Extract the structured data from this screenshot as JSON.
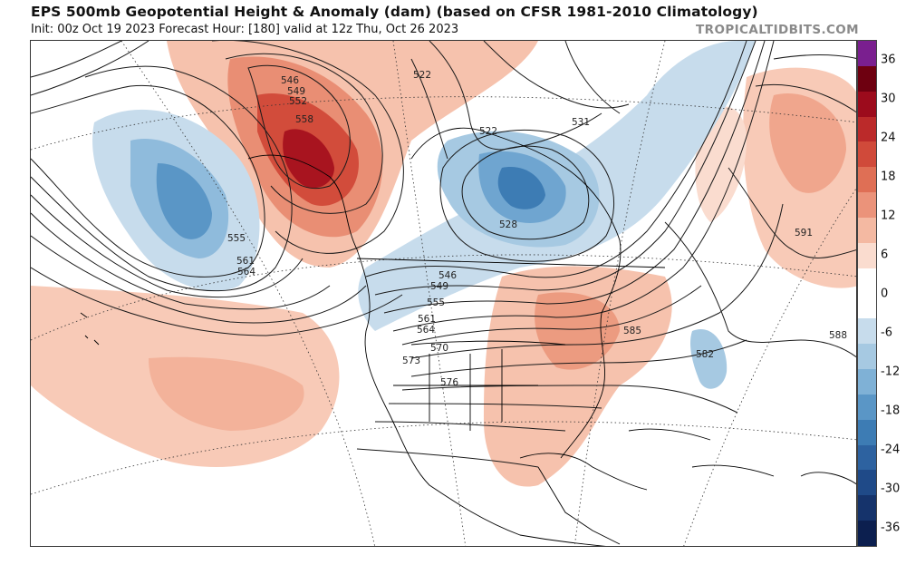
{
  "header": {
    "title": "EPS 500mb Geopotential Height & Anomaly (dam) (based on CFSR 1981-2010 Climatology)",
    "subtitle": "Init: 00z Oct 19 2023   Forecast Hour: [180]   valid at 12z Thu, Oct 26 2023",
    "brand": "TROPICALTIDBITS.COM"
  },
  "colorbar": {
    "ticks": [
      "36",
      "30",
      "24",
      "18",
      "12",
      "6",
      "0",
      "-6",
      "-12",
      "-18",
      "-24",
      "-30",
      "-36"
    ],
    "bands": [
      "#7a1f8f",
      "#6e0010",
      "#9c0b1c",
      "#bb2a2a",
      "#d04a3a",
      "#df6f55",
      "#eb937a",
      "#f4b9a2",
      "#fadccf",
      "#ffffff",
      "#ffffff",
      "#c7dcec",
      "#a6c9e2",
      "#7fb1d6",
      "#5a96c6",
      "#3d7cb4",
      "#2d62a0",
      "#1f4a88",
      "#15336b",
      "#0c1f4f"
    ]
  },
  "contour_labels": {
    "l546a": "546",
    "l549a": "549",
    "l552a": "552",
    "l558a": "558",
    "l522": "522",
    "l522b": "522",
    "l531": "531",
    "l528": "528",
    "l555w": "555",
    "l561w": "561",
    "l564w": "564",
    "l546": "546",
    "l549": "549",
    "l555": "555",
    "l561": "561",
    "l564": "564",
    "l570": "570",
    "l573": "573",
    "l576": "576",
    "l585": "585",
    "l582": "582",
    "l588": "588",
    "l591": "591"
  }
}
